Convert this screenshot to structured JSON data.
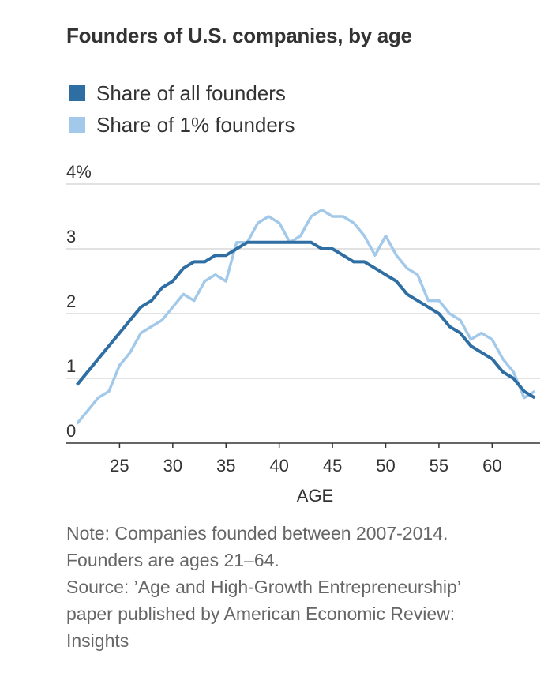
{
  "title": "Founders of U.S. companies, by age",
  "legend": [
    {
      "label": "Share of all founders",
      "color": "#2f6ea3"
    },
    {
      "label": "Share of 1% founders",
      "color": "#a3c9ea"
    }
  ],
  "notes": [
    "Note: Companies founded between 2007-2014.",
    "Founders are ages 21–64.",
    "Source: ’Age and High-Growth Entrepreneurship’",
    "paper published by American Economic Review:",
    "Insights"
  ],
  "chart_data": {
    "type": "line",
    "title": "Founders of U.S. companies, by age",
    "xlabel": "AGE",
    "ylabel": "",
    "xlim": [
      20,
      64.5
    ],
    "ylim": [
      0,
      4
    ],
    "xticks": [
      25,
      30,
      35,
      40,
      45,
      50,
      55,
      60
    ],
    "yticks": [
      0,
      1,
      2,
      3,
      4
    ],
    "ytick_labels": [
      "0",
      "1",
      "2",
      "3",
      "4%"
    ],
    "grid": true,
    "legend_position": "top-left",
    "x": [
      21,
      22,
      23,
      24,
      25,
      26,
      27,
      28,
      29,
      30,
      31,
      32,
      33,
      34,
      35,
      36,
      37,
      38,
      39,
      40,
      41,
      42,
      43,
      44,
      45,
      46,
      47,
      48,
      49,
      50,
      51,
      52,
      53,
      54,
      55,
      56,
      57,
      58,
      59,
      60,
      61,
      62,
      63,
      64
    ],
    "series": [
      {
        "name": "Share of all founders",
        "color": "#2f6ea3",
        "values": [
          0.9,
          1.1,
          1.3,
          1.5,
          1.7,
          1.9,
          2.1,
          2.2,
          2.4,
          2.5,
          2.7,
          2.8,
          2.8,
          2.9,
          2.9,
          3.0,
          3.1,
          3.1,
          3.1,
          3.1,
          3.1,
          3.1,
          3.1,
          3.0,
          3.0,
          2.9,
          2.8,
          2.8,
          2.7,
          2.6,
          2.5,
          2.3,
          2.2,
          2.1,
          2.0,
          1.8,
          1.7,
          1.5,
          1.4,
          1.3,
          1.1,
          1.0,
          0.8,
          0.7
        ]
      },
      {
        "name": "Share of 1% founders",
        "color": "#a3c9ea",
        "values": [
          0.3,
          0.5,
          0.7,
          0.8,
          1.2,
          1.4,
          1.7,
          1.8,
          1.9,
          2.1,
          2.3,
          2.2,
          2.5,
          2.6,
          2.5,
          3.1,
          3.1,
          3.4,
          3.5,
          3.4,
          3.1,
          3.2,
          3.5,
          3.6,
          3.5,
          3.5,
          3.4,
          3.2,
          2.9,
          3.2,
          2.9,
          2.7,
          2.6,
          2.2,
          2.2,
          2.0,
          1.9,
          1.6,
          1.7,
          1.6,
          1.3,
          1.1,
          0.7,
          0.8
        ]
      }
    ]
  }
}
